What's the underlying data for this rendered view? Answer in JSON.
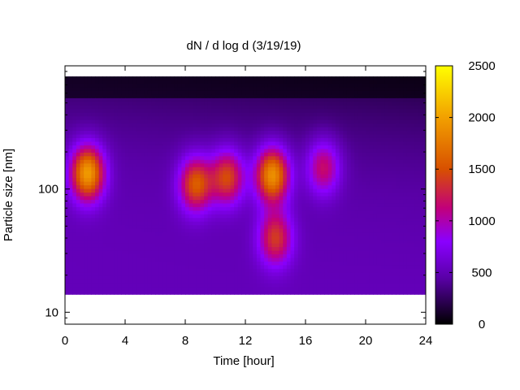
{
  "chart_data": {
    "type": "heatmap",
    "title": "dN / d log d (3/19/19)",
    "xlabel": "Time [hour]",
    "ylabel": "Particle size [nm]",
    "xlim": [
      0,
      24
    ],
    "ylim": [
      8,
      1000
    ],
    "y_scale": "log",
    "x_ticks": [
      0,
      4,
      8,
      12,
      16,
      20,
      24
    ],
    "y_tick_labels": [
      "10",
      "100"
    ],
    "y_tick_values": [
      10,
      100
    ],
    "colorbar": {
      "range": [
        0,
        2500
      ],
      "ticks": [
        0,
        500,
        1000,
        1500,
        2000,
        2500
      ],
      "palette": [
        "#000000",
        "#5a00a8",
        "#8a00ff",
        "#c2007a",
        "#d85000",
        "#f2a000",
        "#ffff00"
      ]
    },
    "data_extent": {
      "x": [
        0,
        24
      ],
      "y_bottom": 14,
      "y_top": 820
    },
    "baseline_level": 450,
    "features": [
      {
        "x": 1.5,
        "y": 135,
        "peak": 1950
      },
      {
        "x": 8.7,
        "y": 110,
        "peak": 1550
      },
      {
        "x": 10.8,
        "y": 125,
        "peak": 1450
      },
      {
        "x": 13.8,
        "y": 130,
        "peak": 1900
      },
      {
        "x": 14.0,
        "y": 40,
        "peak": 1350
      },
      {
        "x": 17.2,
        "y": 150,
        "peak": 1200
      }
    ]
  }
}
